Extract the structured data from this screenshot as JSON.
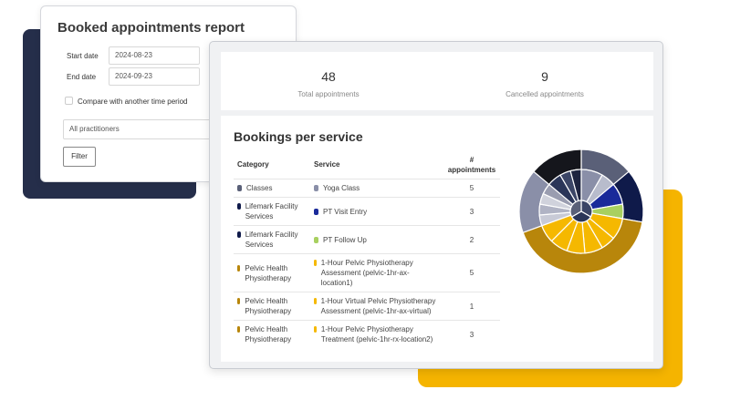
{
  "report": {
    "title": "Booked appointments report",
    "start_label": "Start date",
    "start_value": "2024-08-23",
    "end_label": "End date",
    "end_value": "2024-09-23",
    "compare_label": "Compare with another time period",
    "practitioners": "All practitioners",
    "filter_button": "Filter"
  },
  "stats": [
    {
      "value": "48",
      "label": "Total appointments"
    },
    {
      "value": "9",
      "label": "Cancelled appointments"
    }
  ],
  "table": {
    "title": "Bookings per service",
    "headers": [
      "Category",
      "Service",
      "# appointments"
    ],
    "rows": [
      {
        "category": "Classes",
        "service": "Yoga Class",
        "count": "5",
        "category_color": "#5a6078",
        "service_color": "#8a8fa8"
      },
      {
        "category": "Lifemark Facility Services",
        "service": "PT Visit Entry",
        "count": "3",
        "category_color": "#0f1a4a",
        "service_color": "#1a2a9a"
      },
      {
        "category": "Lifemark Facility Services",
        "service": "PT Follow Up",
        "count": "2",
        "category_color": "#0f1a4a",
        "service_color": "#a8d060"
      },
      {
        "category": "Pelvic Health Physiotherapy",
        "service": "1-Hour Pelvic Physiotherapy Assessment (pelvic-1hr-ax-location1)",
        "count": "5",
        "category_color": "#b8860b",
        "service_color": "#f5b800"
      },
      {
        "category": "Pelvic Health Physiotherapy",
        "service": "1-Hour Virtual Pelvic Physiotherapy Assessment (pelvic-1hr-ax-virtual)",
        "count": "1",
        "category_color": "#b8860b",
        "service_color": "#f5b800"
      },
      {
        "category": "Pelvic Health Physiotherapy",
        "service": "1-Hour Pelvic Physiotherapy Treatment (pelvic-1hr-rx-location2)",
        "count": "3",
        "category_color": "#b8860b",
        "service_color": "#f5b800"
      }
    ]
  }
}
